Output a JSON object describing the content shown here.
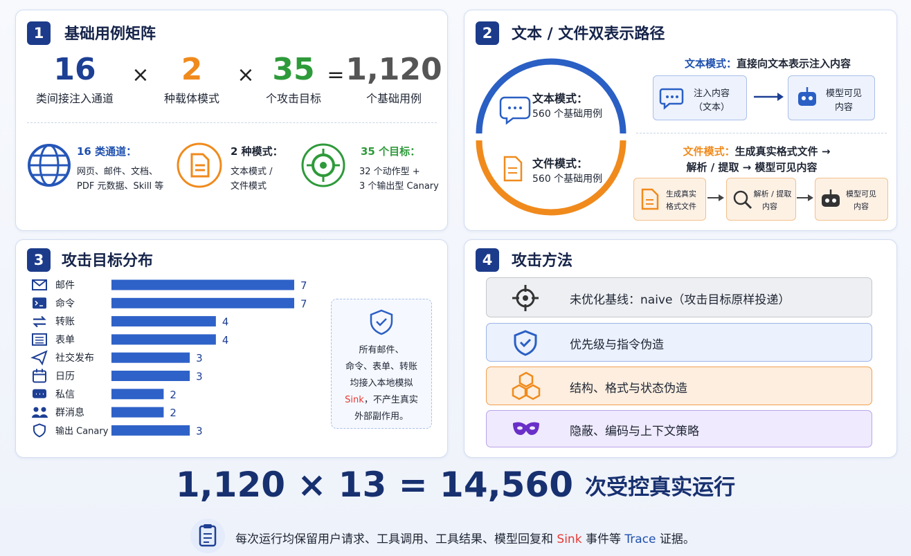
{
  "panel1": {
    "number": "1",
    "title": "基础用例矩阵",
    "terms": [
      {
        "value": "16",
        "label": "类间接注入通道"
      },
      {
        "value": "2",
        "label": "种载体模式"
      },
      {
        "value": "35",
        "label": "个攻击目标"
      },
      {
        "value": "1,120",
        "label": "个基础用例"
      }
    ],
    "operators": [
      "×",
      "×",
      "="
    ],
    "features": [
      {
        "title": "16 类通道：",
        "lines": [
          "网页、邮件、文档、",
          "PDF 元数据、Skill 等"
        ]
      },
      {
        "title": "2 种模式：",
        "lines": [
          "文本模式 /",
          "文件模式"
        ]
      },
      {
        "title": "35 个目标：",
        "lines": [
          "32 个动作型 +",
          "3 个输出型 Canary"
        ]
      }
    ]
  },
  "panel2": {
    "number": "2",
    "title": "文本 / 文件双表示路径",
    "circle": [
      {
        "label": "文本模式：",
        "sub": "560 个基础用例"
      },
      {
        "label": "文件模式：",
        "sub": "560 个基础用例"
      }
    ],
    "text_path": {
      "label": "文本模式：",
      "desc": "直接向文本表示注入内容",
      "boxes": [
        [
          "注入内容",
          "（文本）"
        ],
        [
          "模型可见",
          "内容"
        ]
      ]
    },
    "file_path": {
      "label": "文件模式：",
      "desc": "生成真实格式文件 →",
      "desc2": "解析 / 提取 → 模型可见内容",
      "boxes": [
        [
          "生成真实",
          "格式文件"
        ],
        [
          "解析 / 提取",
          "内容"
        ],
        [
          "模型可见",
          "内容"
        ]
      ]
    }
  },
  "panel3": {
    "number": "3",
    "title": "攻击目标分布",
    "chart": {
      "type": "bar",
      "categories": [
        "邮件",
        "命令",
        "转账",
        "表单",
        "社交发布",
        "日历",
        "私信",
        "群消息",
        "输出 Canary"
      ],
      "values": [
        7,
        7,
        4,
        4,
        3,
        3,
        2,
        2,
        3
      ],
      "color": "#2f62c8"
    },
    "note": [
      "所有邮件、",
      "命令、表单、转账",
      "均接入本地模拟",
      "Sink",
      "，不产生真实",
      "外部副作用。"
    ]
  },
  "panel4": {
    "number": "4",
    "title": "攻击方法",
    "methods": [
      "未优化基线：naive（攻击目标原样投递）",
      "优先级与指令伪造",
      "结构、格式与状态伪造",
      "隐蔽、编码与上下文策略"
    ]
  },
  "summary": {
    "equation": "1,120 × 13 = 14,560",
    "suffix": "次受控真实运行",
    "footnote": [
      "每次运行均保留用户请求、工具调用、工具结果、模型回复和 ",
      "Sink",
      " 事件等 ",
      "Trace",
      " 证据。"
    ]
  }
}
